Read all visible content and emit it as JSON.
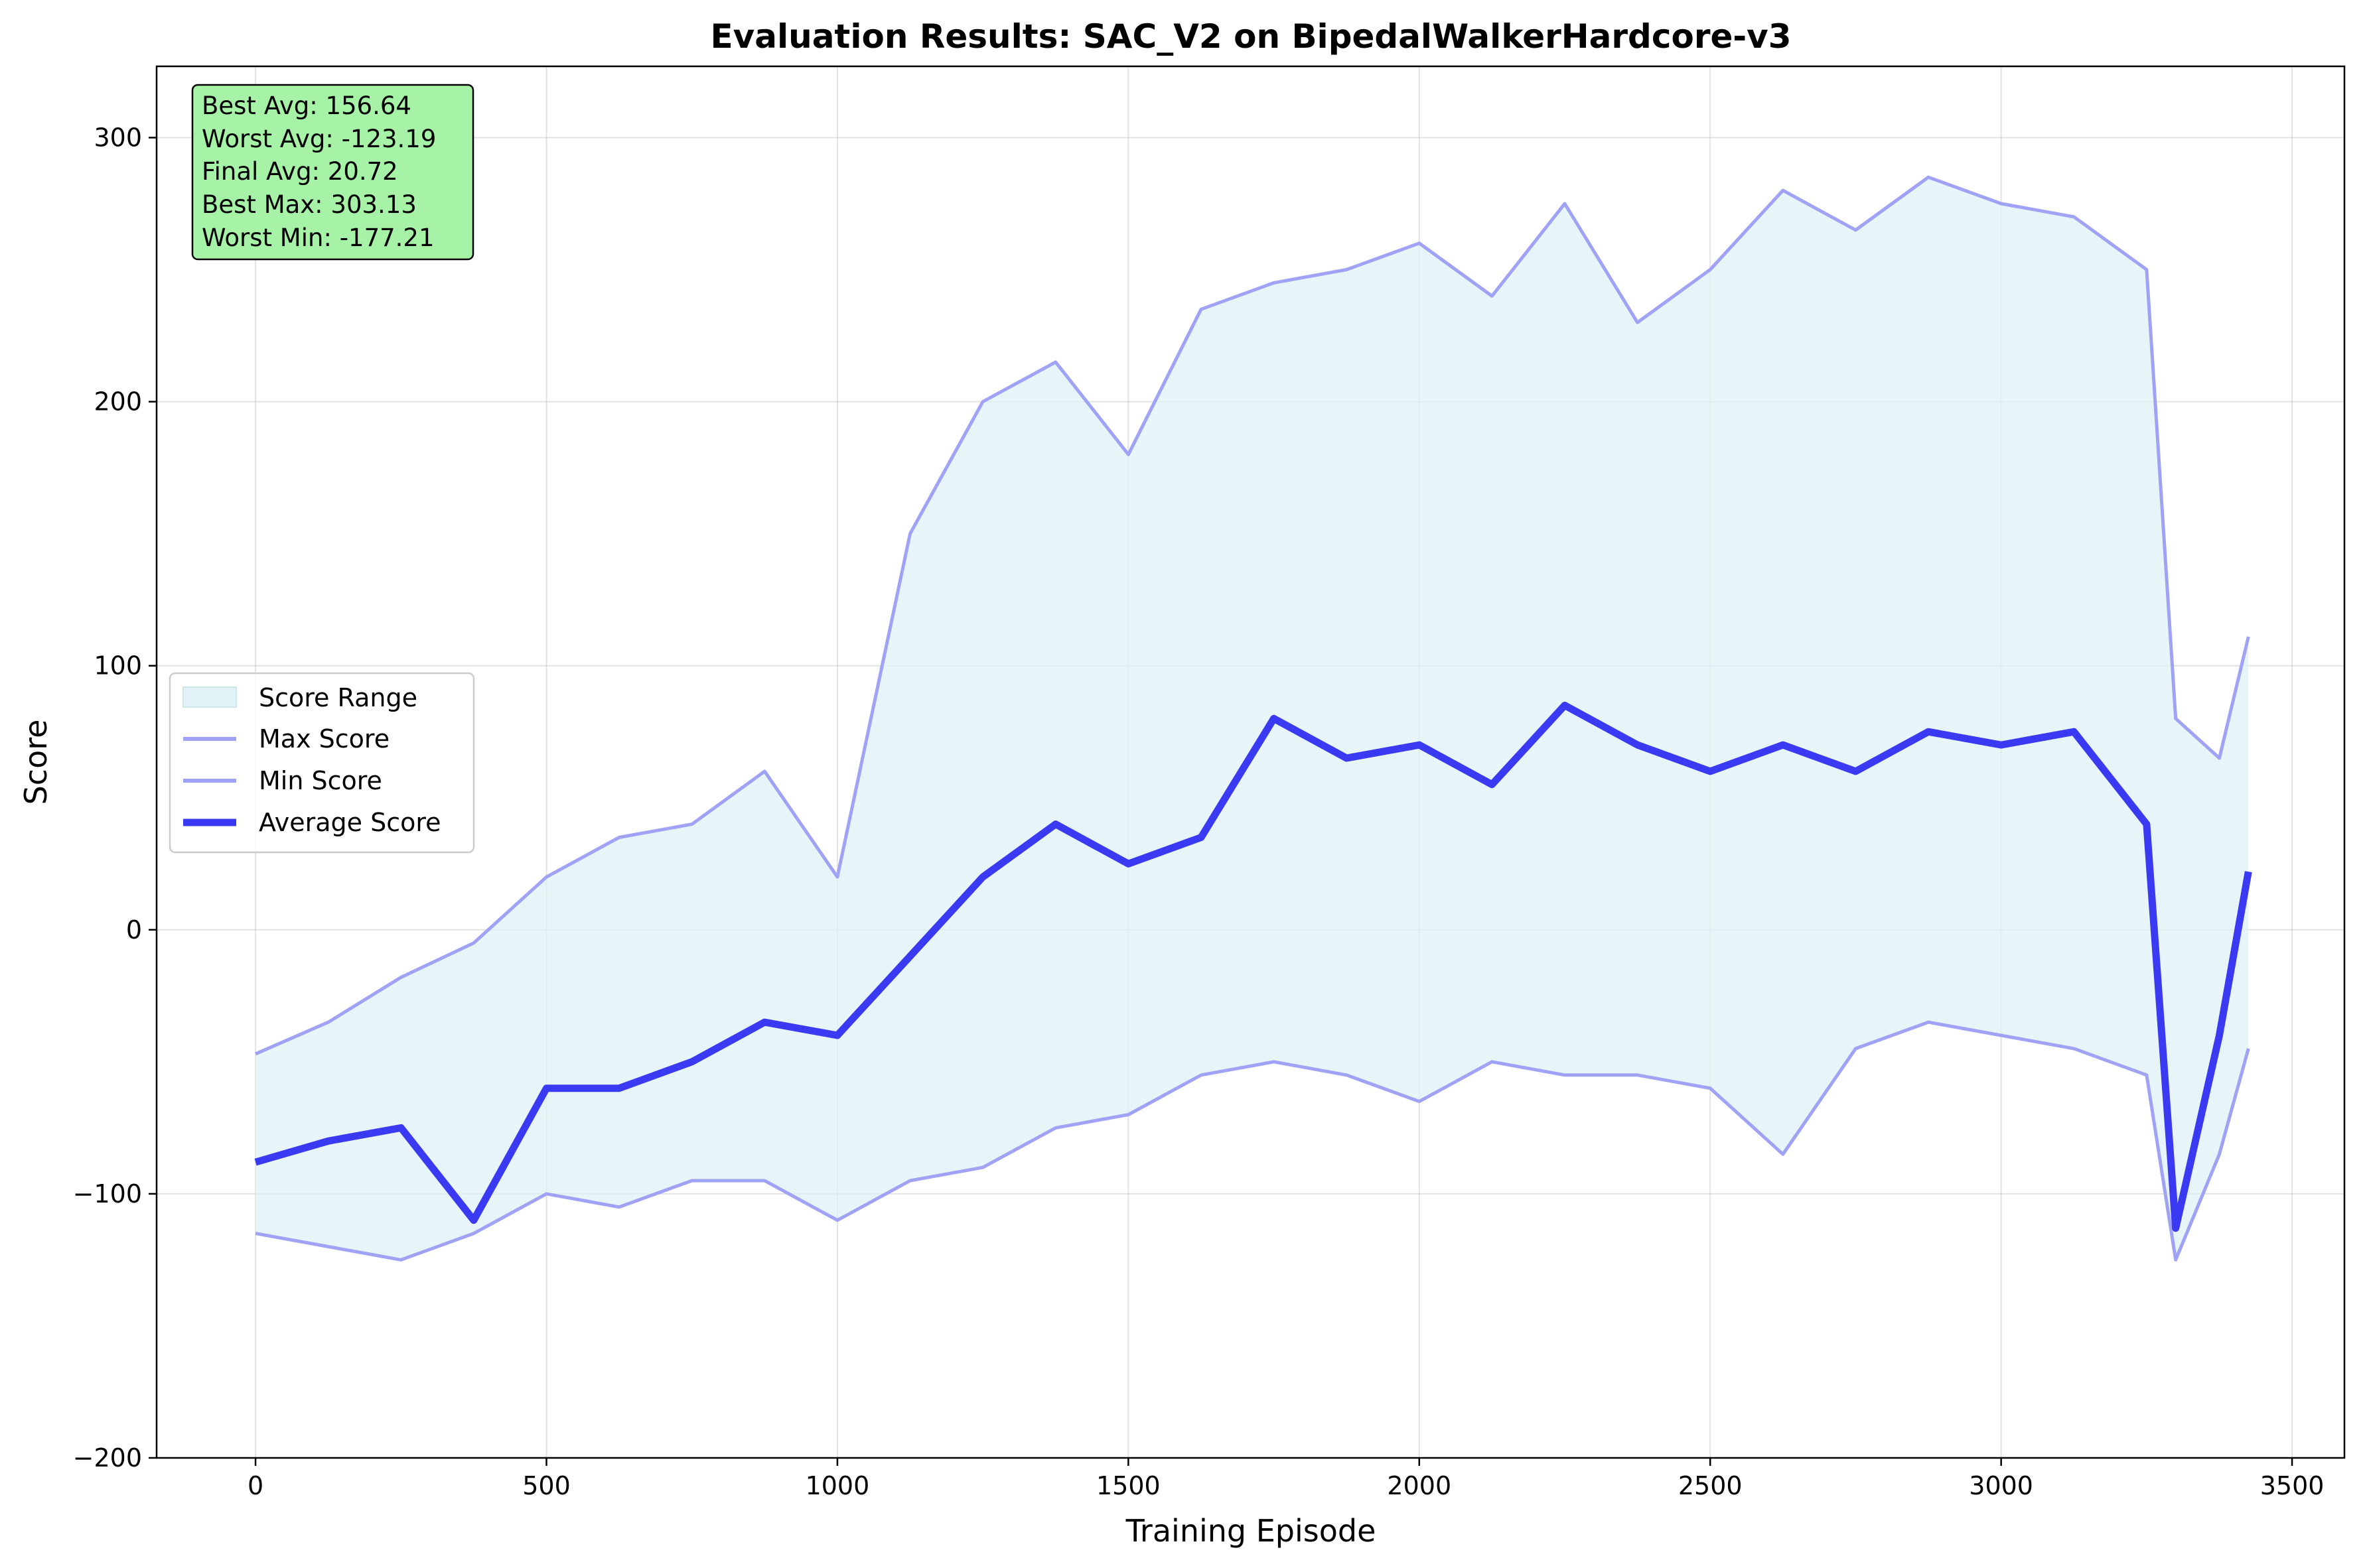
{
  "chart_data": {
    "type": "line",
    "title": "Evaluation Results: SAC_V2 on BipedalWalkerHardcore-v3",
    "xlabel": "Training Episode",
    "ylabel": "Score",
    "xlim": [
      -170,
      3590
    ],
    "ylim": [
      -200,
      327
    ],
    "xticks": [
      0,
      500,
      1000,
      1500,
      2000,
      2500,
      3000,
      3500
    ],
    "yticks": [
      -200,
      -100,
      0,
      100,
      200,
      300
    ],
    "xtick_labels": [
      "0",
      "500",
      "1000",
      "1500",
      "2000",
      "2500",
      "3000",
      "3500"
    ],
    "ytick_labels": [
      "−200",
      "−100",
      "0",
      "100",
      "200",
      "300"
    ],
    "grid": true,
    "legend": {
      "placement": "center-left",
      "entries": [
        "Score Range",
        "Max Score",
        "Min Score",
        "Average Score"
      ]
    },
    "colors": {
      "range_fill": "#e0f2f5",
      "max_line": "#9fa2f5",
      "min_line": "#9fa2f5",
      "avg_line": "#3a3af2",
      "stats_box_fill": "#a6f2a6"
    },
    "stats_box": [
      "Best Avg: 156.64",
      "Worst Avg: -123.19",
      "Final Avg: 20.72",
      "Best Max: 303.13",
      "Worst Min: -177.21"
    ],
    "x": [
      0,
      125,
      250,
      375,
      500,
      625,
      750,
      875,
      1000,
      1125,
      1250,
      1375,
      1500,
      1625,
      1750,
      1875,
      2000,
      2125,
      2250,
      2375,
      2500,
      2625,
      2750,
      2875,
      3000,
      3125,
      3250,
      3300,
      3375,
      3425
    ],
    "series": [
      {
        "name": "Max Score",
        "values": [
          -47,
          -35,
          -18,
          -5,
          20,
          35,
          40,
          60,
          20,
          150,
          200,
          215,
          180,
          235,
          245,
          250,
          260,
          240,
          275,
          230,
          250,
          280,
          265,
          285,
          275,
          270,
          250,
          80,
          65,
          111
        ]
      },
      {
        "name": "Min Score",
        "values": [
          -115,
          -120,
          -125,
          -115,
          -100,
          -105,
          -95,
          -95,
          -110,
          -95,
          -90,
          -75,
          -70,
          -55,
          -50,
          -55,
          -65,
          -50,
          -55,
          -55,
          -60,
          -85,
          -45,
          -35,
          -40,
          -45,
          -55,
          -125,
          -85,
          -45
        ]
      },
      {
        "name": "Average Score",
        "values": [
          -88,
          -80,
          -75,
          -110,
          -60,
          -60,
          -50,
          -35,
          -40,
          -10,
          20,
          40,
          25,
          35,
          80,
          65,
          70,
          55,
          85,
          70,
          60,
          70,
          60,
          75,
          70,
          75,
          40,
          -113,
          -40,
          22
        ]
      }
    ]
  }
}
